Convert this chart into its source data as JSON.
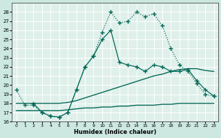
{
  "xlabel": "Humidex (Indice chaleur)",
  "xlim": [
    -0.5,
    23.5
  ],
  "ylim": [
    16,
    29
  ],
  "yticks": [
    16,
    17,
    18,
    19,
    20,
    21,
    22,
    23,
    24,
    25,
    26,
    27,
    28
  ],
  "xticks": [
    0,
    1,
    2,
    3,
    4,
    5,
    6,
    7,
    8,
    9,
    10,
    11,
    12,
    13,
    14,
    15,
    16,
    17,
    18,
    19,
    20,
    21,
    22,
    23
  ],
  "background_color": "#cce8e0",
  "plot_bg_color": "#dff0ea",
  "grid_color": "#ffffff",
  "line_color": "#006655",
  "lines": [
    {
      "x": [
        0,
        1,
        2,
        3,
        4,
        5,
        6,
        7,
        8,
        9,
        10,
        11,
        12,
        13,
        14,
        15,
        16,
        17,
        18,
        19,
        20,
        21,
        22,
        23
      ],
      "y": [
        19.5,
        17.8,
        17.8,
        17.0,
        16.6,
        16.5,
        17.0,
        19.5,
        22.0,
        23.2,
        25.8,
        28.0,
        26.8,
        27.0,
        28.0,
        27.5,
        27.8,
        26.5,
        24.0,
        22.2,
        21.5,
        20.2,
        19.0,
        18.8
      ],
      "marker": "+",
      "markersize": 4,
      "linewidth": 0.9,
      "linestyle": ":"
    },
    {
      "x": [
        2,
        3,
        4,
        5,
        6,
        7,
        8,
        9,
        10,
        11,
        12,
        13,
        14,
        15,
        16,
        17,
        18,
        19,
        20,
        21,
        22,
        23
      ],
      "y": [
        18.0,
        17.0,
        16.6,
        16.5,
        17.0,
        19.5,
        22.0,
        23.2,
        25.0,
        26.0,
        22.5,
        22.2,
        22.0,
        21.5,
        22.2,
        22.0,
        21.5,
        21.5,
        21.7,
        20.5,
        19.5,
        18.8
      ],
      "marker": "+",
      "markersize": 4,
      "linewidth": 0.9,
      "linestyle": "-"
    },
    {
      "x": [
        0,
        1,
        2,
        3,
        4,
        5,
        6,
        7,
        8,
        9,
        10,
        11,
        12,
        13,
        14,
        15,
        16,
        17,
        18,
        19,
        20,
        21,
        22,
        23
      ],
      "y": [
        18.0,
        18.0,
        18.0,
        18.0,
        18.0,
        18.0,
        18.1,
        18.3,
        18.6,
        18.9,
        19.2,
        19.5,
        19.8,
        20.1,
        20.4,
        20.7,
        21.0,
        21.2,
        21.5,
        21.7,
        21.8,
        21.8,
        21.6,
        21.5
      ],
      "marker": "",
      "markersize": 0,
      "linewidth": 1.0,
      "linestyle": "-"
    },
    {
      "x": [
        0,
        1,
        2,
        3,
        4,
        5,
        6,
        7,
        8,
        9,
        10,
        11,
        12,
        13,
        14,
        15,
        16,
        17,
        18,
        19,
        20,
        21,
        22,
        23
      ],
      "y": [
        17.2,
        17.2,
        17.2,
        17.2,
        17.2,
        17.2,
        17.3,
        17.4,
        17.5,
        17.5,
        17.6,
        17.6,
        17.7,
        17.7,
        17.8,
        17.8,
        17.8,
        17.9,
        17.9,
        18.0,
        18.0,
        18.0,
        18.0,
        18.0
      ],
      "marker": "",
      "markersize": 0,
      "linewidth": 1.0,
      "linestyle": "-"
    }
  ]
}
